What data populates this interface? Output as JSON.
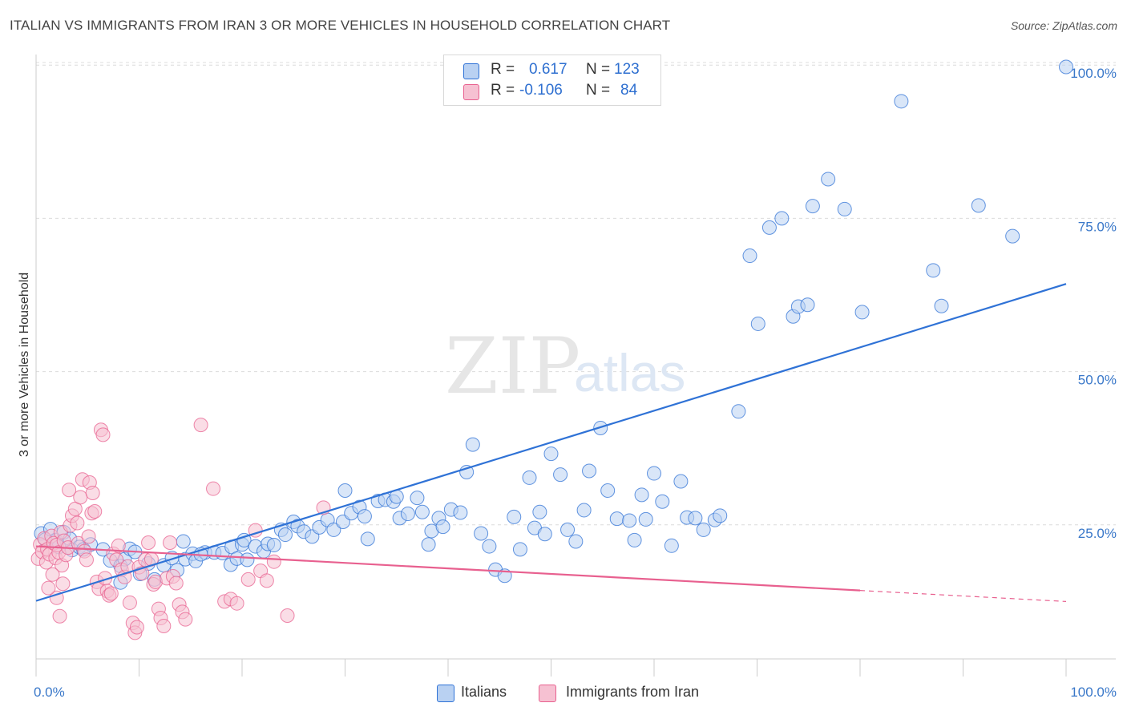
{
  "title": "ITALIAN VS IMMIGRANTS FROM IRAN 3 OR MORE VEHICLES IN HOUSEHOLD CORRELATION CHART",
  "source": "Source: ZipAtlas.com",
  "watermark": {
    "zip": "ZIP",
    "atlas": "atlas"
  },
  "colors": {
    "blue": "#2f72d6",
    "blue_fill": "#b9d1f2",
    "pink": "#e8608f",
    "pink_fill": "#f6c1d2",
    "axis_blue": "#3a78c9"
  },
  "legend_top": {
    "rows": [
      {
        "r_label": "R =",
        "r_value": "0.617",
        "n_label": "N =",
        "n_value": "123"
      },
      {
        "r_label": "R =",
        "r_value": "-0.106",
        "n_label": "N =",
        "n_value": "84"
      }
    ]
  },
  "legend_bottom": {
    "items": [
      "Italians",
      "Immigrants from Iran"
    ]
  },
  "chart_data": {
    "type": "scatter",
    "title": "ITALIAN VS IMMIGRANTS FROM IRAN 3 OR MORE VEHICLES IN HOUSEHOLD CORRELATION CHART",
    "xlabel": "",
    "ylabel": "3 or more Vehicles in Household",
    "x_ticks": [
      "0.0%",
      "100.0%"
    ],
    "y_ticks": [
      "25.0%",
      "50.0%",
      "75.0%",
      "100.0%"
    ],
    "xlim": [
      0,
      100
    ],
    "ylim": [
      0,
      102
    ],
    "grid": true,
    "legend_position": "top-center",
    "series": [
      {
        "name": "Italians",
        "r": 0.617,
        "n": 123,
        "trend": {
          "x": [
            0,
            100
          ],
          "y": [
            12.6,
            64.3
          ]
        },
        "points": [
          [
            0.5,
            23.6
          ],
          [
            0.9,
            22.6
          ],
          [
            1.4,
            24.3
          ],
          [
            1.9,
            22.5
          ],
          [
            2.2,
            21.4
          ],
          [
            2.7,
            23.8
          ],
          [
            3.3,
            22.7
          ],
          [
            3.5,
            20.9
          ],
          [
            4.2,
            21.4
          ],
          [
            4.6,
            21.0
          ],
          [
            5.3,
            21.8
          ],
          [
            6.5,
            21.0
          ],
          [
            7.2,
            19.2
          ],
          [
            8.2,
            18.3
          ],
          [
            8.6,
            19.4
          ],
          [
            8.2,
            15.6
          ],
          [
            9.1,
            21.1
          ],
          [
            9.6,
            20.6
          ],
          [
            10.1,
            17.0
          ],
          [
            10.9,
            18.7
          ],
          [
            11.5,
            16.1
          ],
          [
            12.4,
            18.4
          ],
          [
            13.2,
            19.6
          ],
          [
            13.7,
            17.6
          ],
          [
            14.5,
            19.4
          ],
          [
            14.3,
            22.3
          ],
          [
            15.2,
            20.3
          ],
          [
            15.5,
            19.1
          ],
          [
            16.4,
            20.5
          ],
          [
            16.0,
            20.2
          ],
          [
            17.3,
            20.5
          ],
          [
            18.1,
            20.4
          ],
          [
            19.0,
            21.4
          ],
          [
            18.9,
            18.5
          ],
          [
            19.5,
            19.5
          ],
          [
            20.0,
            21.8
          ],
          [
            20.5,
            19.3
          ],
          [
            20.2,
            22.5
          ],
          [
            21.3,
            21.5
          ],
          [
            22.1,
            20.7
          ],
          [
            22.5,
            21.9
          ],
          [
            23.1,
            21.7
          ],
          [
            23.8,
            24.2
          ],
          [
            24.2,
            23.4
          ],
          [
            25.0,
            25.5
          ],
          [
            25.4,
            24.8
          ],
          [
            26.0,
            23.9
          ],
          [
            26.8,
            23.1
          ],
          [
            27.5,
            24.6
          ],
          [
            28.3,
            25.8
          ],
          [
            28.9,
            24.2
          ],
          [
            29.8,
            25.5
          ],
          [
            30.6,
            26.9
          ],
          [
            31.4,
            27.9
          ],
          [
            30.0,
            30.6
          ],
          [
            31.9,
            26.4
          ],
          [
            32.2,
            22.7
          ],
          [
            33.2,
            28.9
          ],
          [
            33.9,
            29.1
          ],
          [
            34.7,
            28.8
          ],
          [
            35.0,
            29.6
          ],
          [
            35.3,
            26.1
          ],
          [
            36.1,
            26.8
          ],
          [
            37.0,
            29.4
          ],
          [
            37.5,
            27.1
          ],
          [
            38.1,
            21.8
          ],
          [
            38.4,
            24.0
          ],
          [
            39.1,
            26.1
          ],
          [
            39.5,
            24.7
          ],
          [
            40.3,
            27.5
          ],
          [
            41.2,
            27.0
          ],
          [
            41.8,
            33.6
          ],
          [
            42.4,
            38.1
          ],
          [
            43.2,
            23.6
          ],
          [
            44.0,
            21.5
          ],
          [
            44.6,
            17.7
          ],
          [
            45.5,
            16.7
          ],
          [
            46.4,
            26.3
          ],
          [
            47.0,
            21.0
          ],
          [
            47.9,
            32.7
          ],
          [
            48.4,
            24.5
          ],
          [
            48.9,
            27.1
          ],
          [
            49.4,
            23.5
          ],
          [
            50.0,
            36.6
          ],
          [
            50.9,
            33.2
          ],
          [
            51.6,
            24.2
          ],
          [
            52.4,
            22.3
          ],
          [
            53.2,
            27.4
          ],
          [
            53.7,
            33.8
          ],
          [
            54.8,
            40.8
          ],
          [
            55.5,
            30.6
          ],
          [
            56.4,
            26.0
          ],
          [
            57.6,
            25.7
          ],
          [
            58.1,
            22.5
          ],
          [
            58.8,
            29.9
          ],
          [
            59.2,
            25.9
          ],
          [
            60.0,
            33.4
          ],
          [
            60.8,
            28.8
          ],
          [
            61.7,
            21.6
          ],
          [
            62.6,
            32.1
          ],
          [
            63.2,
            26.2
          ],
          [
            64.0,
            26.1
          ],
          [
            64.8,
            24.2
          ],
          [
            65.9,
            25.8
          ],
          [
            66.4,
            26.5
          ],
          [
            68.2,
            43.5
          ],
          [
            69.3,
            68.9
          ],
          [
            70.1,
            57.8
          ],
          [
            71.2,
            73.5
          ],
          [
            72.4,
            75.0
          ],
          [
            73.5,
            59.0
          ],
          [
            74.0,
            60.6
          ],
          [
            74.9,
            60.9
          ],
          [
            75.4,
            77.0
          ],
          [
            76.9,
            81.4
          ],
          [
            78.5,
            76.5
          ],
          [
            80.2,
            59.7
          ],
          [
            84.0,
            94.1
          ],
          [
            87.1,
            66.5
          ],
          [
            87.9,
            60.7
          ],
          [
            91.5,
            77.1
          ],
          [
            94.8,
            72.1
          ],
          [
            100.0,
            99.7
          ]
        ]
      },
      {
        "name": "Immigrants from Iran",
        "r": -0.106,
        "n": 84,
        "trend": {
          "x": [
            0,
            80
          ],
          "y": [
            21.5,
            14.3
          ],
          "dashed_to": {
            "x": 100,
            "y": 12.5
          }
        },
        "points": [
          [
            0.2,
            19.5
          ],
          [
            0.4,
            21.8
          ],
          [
            0.6,
            20.6
          ],
          [
            0.8,
            22.8
          ],
          [
            1.0,
            18.9
          ],
          [
            1.1,
            21.0
          ],
          [
            1.3,
            20.2
          ],
          [
            1.5,
            23.2
          ],
          [
            1.7,
            22.0
          ],
          [
            1.9,
            19.6
          ],
          [
            2.0,
            21.7
          ],
          [
            2.2,
            20.5
          ],
          [
            2.4,
            23.8
          ],
          [
            2.5,
            18.4
          ],
          [
            2.7,
            22.4
          ],
          [
            2.9,
            20.1
          ],
          [
            3.1,
            21.3
          ],
          [
            3.3,
            24.9
          ],
          [
            3.5,
            26.5
          ],
          [
            3.2,
            30.7
          ],
          [
            3.8,
            27.6
          ],
          [
            4.0,
            25.3
          ],
          [
            4.1,
            22.0
          ],
          [
            4.3,
            29.5
          ],
          [
            4.5,
            32.4
          ],
          [
            4.7,
            20.7
          ],
          [
            4.9,
            19.3
          ],
          [
            5.1,
            23.1
          ],
          [
            5.2,
            31.9
          ],
          [
            5.4,
            26.9
          ],
          [
            5.5,
            30.2
          ],
          [
            5.7,
            27.2
          ],
          [
            5.9,
            15.7
          ],
          [
            6.1,
            14.6
          ],
          [
            6.3,
            40.5
          ],
          [
            6.5,
            39.7
          ],
          [
            6.7,
            16.3
          ],
          [
            6.9,
            14.2
          ],
          [
            7.1,
            13.5
          ],
          [
            7.3,
            13.8
          ],
          [
            2.0,
            13.1
          ],
          [
            2.3,
            10.1
          ],
          [
            2.6,
            15.4
          ],
          [
            1.6,
            16.9
          ],
          [
            1.2,
            14.7
          ],
          [
            7.5,
            20.3
          ],
          [
            7.8,
            19.3
          ],
          [
            8.0,
            21.6
          ],
          [
            8.3,
            17.7
          ],
          [
            8.6,
            16.5
          ],
          [
            8.9,
            18.2
          ],
          [
            9.1,
            12.3
          ],
          [
            9.4,
            9.0
          ],
          [
            9.6,
            7.4
          ],
          [
            9.8,
            8.3
          ],
          [
            10.0,
            18.1
          ],
          [
            10.3,
            17.1
          ],
          [
            10.6,
            19.3
          ],
          [
            10.9,
            22.1
          ],
          [
            11.2,
            19.4
          ],
          [
            11.4,
            15.3
          ],
          [
            11.6,
            15.7
          ],
          [
            11.9,
            11.3
          ],
          [
            12.1,
            9.8
          ],
          [
            12.4,
            8.5
          ],
          [
            12.7,
            16.3
          ],
          [
            13.0,
            22.1
          ],
          [
            13.3,
            16.6
          ],
          [
            13.6,
            15.5
          ],
          [
            13.9,
            12.0
          ],
          [
            14.2,
            10.8
          ],
          [
            14.5,
            9.6
          ],
          [
            16.0,
            41.3
          ],
          [
            17.2,
            30.9
          ],
          [
            18.3,
            12.5
          ],
          [
            18.9,
            12.9
          ],
          [
            19.5,
            12.2
          ],
          [
            20.6,
            16.1
          ],
          [
            21.3,
            24.1
          ],
          [
            21.8,
            17.5
          ],
          [
            22.4,
            15.9
          ],
          [
            23.1,
            19.0
          ],
          [
            24.4,
            10.2
          ],
          [
            27.9,
            27.8
          ]
        ]
      }
    ]
  }
}
